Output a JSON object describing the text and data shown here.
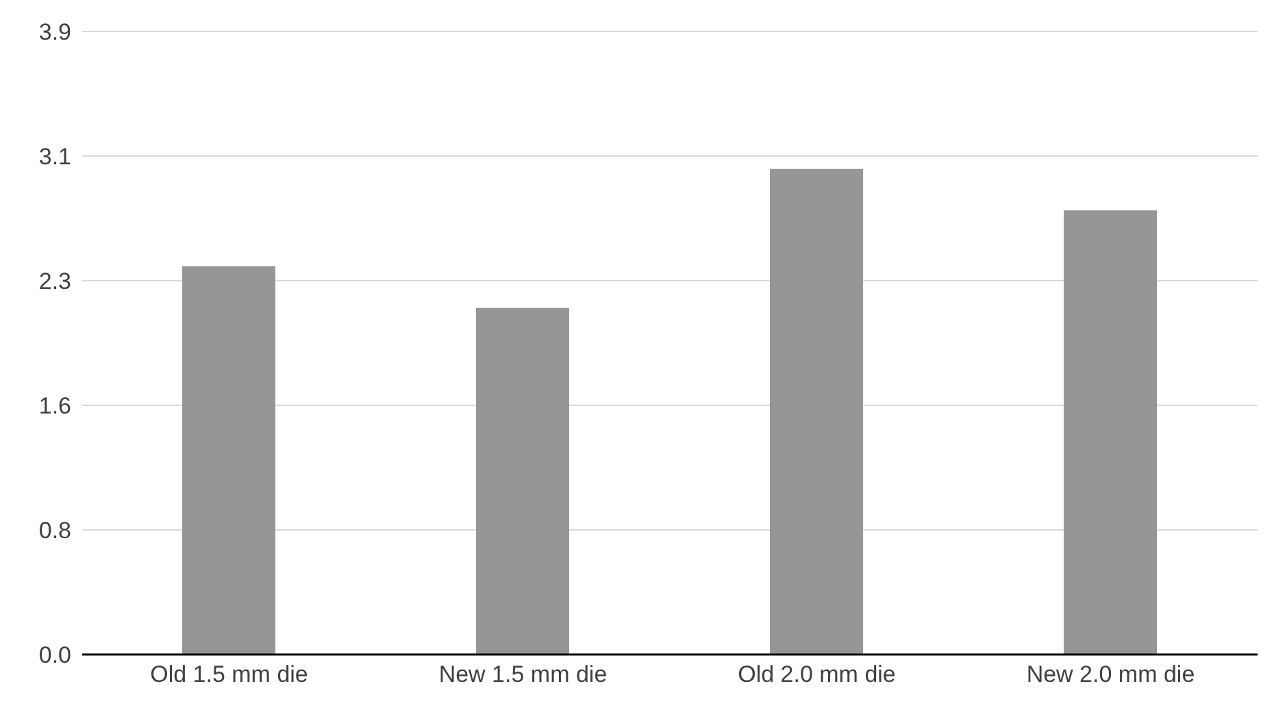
{
  "chart_data": {
    "type": "bar",
    "categories": [
      "Old 1.5 mm die",
      "New 1.5 mm die",
      "Old 2.0 mm die",
      "New 2.0 mm die"
    ],
    "values": [
      2.43,
      2.17,
      3.04,
      2.78
    ],
    "color": "#969696",
    "ylim": [
      0,
      3.9
    ],
    "yticks": [
      {
        "value": 0,
        "label": "0.0"
      },
      {
        "value": 0.78,
        "label": "0.8"
      },
      {
        "value": 1.56,
        "label": "1.6"
      },
      {
        "value": 2.34,
        "label": "2.3"
      },
      {
        "value": 3.12,
        "label": "3.1"
      },
      {
        "value": 3.9,
        "label": "3.9"
      }
    ],
    "grid": "y"
  }
}
